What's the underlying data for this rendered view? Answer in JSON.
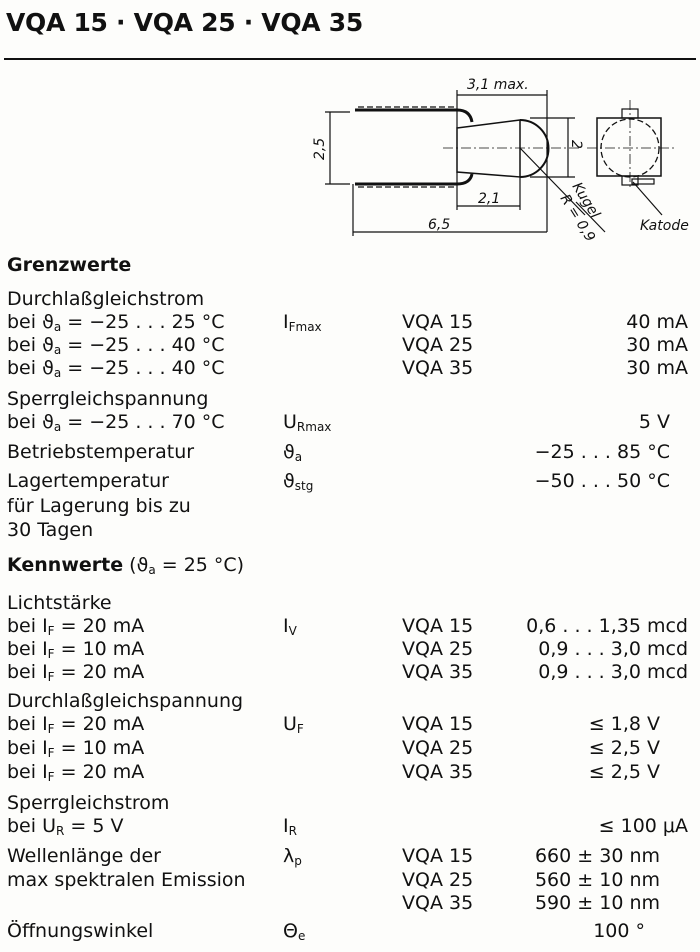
{
  "title": "VQA 15 · VQA 25 · VQA 35",
  "drawing": {
    "dim_31": "3,1 max.",
    "dim_25": "2,5",
    "dim_2": "2",
    "dim_21": "2,1",
    "dim_65": "6,5",
    "kugel": "Kugel",
    "radius": "R = 0,9",
    "katode": "Katode"
  },
  "grenzwerte": {
    "heading": "Grenzwerte",
    "if_label": "Durchlaßgleichstrom",
    "if_rows": [
      {
        "pre": "bei ϑ",
        "sub": "a",
        "post": " = −25 . . . 25 °C",
        "sym": "I",
        "sym_sub": "Fmax",
        "type": "VQA 15",
        "value": "40 mA"
      },
      {
        "pre": "bei ϑ",
        "sub": "a",
        "post": " = −25 . . . 40 °C",
        "type": "VQA 25",
        "value": "30 mA"
      },
      {
        "pre": "bei ϑ",
        "sub": "a",
        "post": " = −25 . . . 40 °C",
        "type": "VQA 35",
        "value": "30 mA"
      }
    ],
    "ur_label": "Sperrgleichspannung",
    "ur_row": {
      "pre": "bei ϑ",
      "sub": "a",
      "post": " = −25 . . . 70 °C",
      "sym": "U",
      "sym_sub": "Rmax",
      "value": "5 V"
    },
    "betrieb": {
      "label": "Betriebstemperatur",
      "sym": "ϑ",
      "sym_sub": "a",
      "value": "−25 . . . 85 °C"
    },
    "lager": {
      "label": "Lagertemperatur",
      "label2": "für Lagerung bis zu",
      "label3": "30 Tagen",
      "sym": "ϑ",
      "sym_sub": "stg",
      "value": "−50 . . . 50 °C"
    }
  },
  "kennwerte": {
    "heading": "Kennwerte",
    "heading_cond_pre": "(ϑ",
    "heading_cond_sub": "a",
    "heading_cond_post": " = 25 °C)",
    "iv_label": "Lichtstärke",
    "iv_rows": [
      {
        "pre": "bei I",
        "sub": "F",
        "post": " = 20 mA",
        "sym": "I",
        "sym_sub": "V",
        "type": "VQA 15",
        "value": "0,6 . . . 1,35 mcd"
      },
      {
        "pre": "bei I",
        "sub": "F",
        "post": " = 10 mA",
        "type": "VQA 25",
        "value": "0,9 . . . 3,0 mcd"
      },
      {
        "pre": "bei I",
        "sub": "F",
        "post": " = 20 mA",
        "type": "VQA 35",
        "value": "0,9 . . . 3,0 mcd"
      }
    ],
    "uf_label": "Durchlaßgleichspannung",
    "uf_rows": [
      {
        "pre": "bei I",
        "sub": "F",
        "post": " = 20 mA",
        "sym": "U",
        "sym_sub": "F",
        "type": "VQA 15",
        "value": "≤ 1,8 V"
      },
      {
        "pre": "bei I",
        "sub": "F",
        "post": " = 10 mA",
        "type": "VQA 25",
        "value": "≤ 2,5 V"
      },
      {
        "pre": "bei I",
        "sub": "F",
        "post": " = 20 mA",
        "type": "VQA 35",
        "value": "≤ 2,5 V"
      }
    ],
    "ir_label": "Sperrgleichstrom",
    "ir_row": {
      "pre": "bei U",
      "sub": "R",
      "post": " = 5 V",
      "sym": "I",
      "sym_sub": "R",
      "value": "≤ 100 μA"
    },
    "lambda_label": "Wellenlänge der",
    "lambda_label2": "max spektralen Emission",
    "lambda_sym": "λ",
    "lambda_sym_sub": "p",
    "lambda_rows": [
      {
        "type": "VQA 15",
        "value": "660 ± 30 nm"
      },
      {
        "type": "VQA 25",
        "value": "560 ± 10 nm"
      },
      {
        "type": "VQA 35",
        "value": "590 ± 10 nm"
      }
    ],
    "angle": {
      "label": "Öffnungswinkel",
      "sym": "Θ",
      "sym_sub": "e",
      "value": "100 °"
    }
  }
}
